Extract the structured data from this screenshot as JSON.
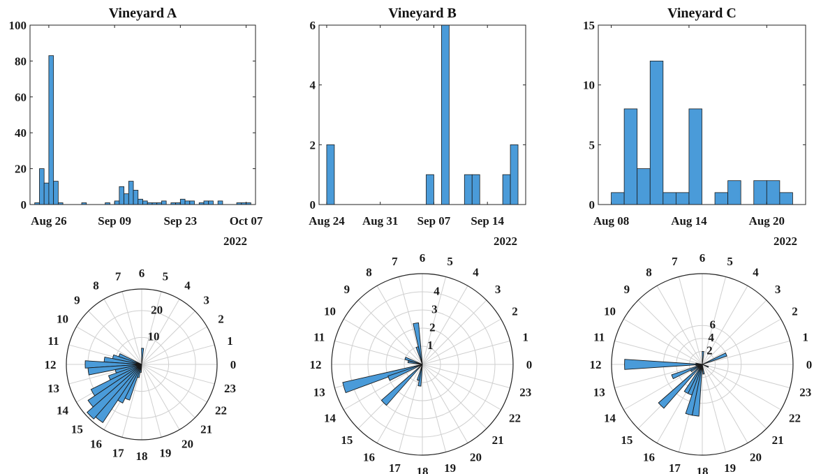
{
  "colors": {
    "bar_fill": "#4a9bd9",
    "bar_edge": "#1a1a1a",
    "axis": "#222222",
    "grid": "#cfcfcf"
  },
  "chart_data": [
    {
      "type": "bar",
      "title": "Vineyard A",
      "ylim": [
        0,
        100
      ],
      "yticks": [
        0,
        20,
        40,
        60,
        80,
        100
      ],
      "xrange": [
        "2022-08-22",
        "2022-10-09"
      ],
      "xticks": [
        {
          "date": "2022-08-26",
          "label": "Aug 26"
        },
        {
          "date": "2022-09-09",
          "label": "Sep 09"
        },
        {
          "date": "2022-09-23",
          "label": "Sep 23"
        },
        {
          "date": "2022-10-07",
          "label": "Oct 07"
        }
      ],
      "year_label": "2022",
      "bin_days": 1,
      "bins": [
        {
          "date": "2022-08-23",
          "value": 1
        },
        {
          "date": "2022-08-24",
          "value": 20
        },
        {
          "date": "2022-08-25",
          "value": 12
        },
        {
          "date": "2022-08-26",
          "value": 83
        },
        {
          "date": "2022-08-27",
          "value": 13
        },
        {
          "date": "2022-08-28",
          "value": 1
        },
        {
          "date": "2022-09-02",
          "value": 1
        },
        {
          "date": "2022-09-07",
          "value": 1
        },
        {
          "date": "2022-09-09",
          "value": 2
        },
        {
          "date": "2022-09-10",
          "value": 10
        },
        {
          "date": "2022-09-11",
          "value": 6
        },
        {
          "date": "2022-09-12",
          "value": 13
        },
        {
          "date": "2022-09-13",
          "value": 8
        },
        {
          "date": "2022-09-14",
          "value": 3
        },
        {
          "date": "2022-09-15",
          "value": 2
        },
        {
          "date": "2022-09-16",
          "value": 1
        },
        {
          "date": "2022-09-17",
          "value": 1
        },
        {
          "date": "2022-09-18",
          "value": 1
        },
        {
          "date": "2022-09-19",
          "value": 2
        },
        {
          "date": "2022-09-21",
          "value": 1
        },
        {
          "date": "2022-09-22",
          "value": 1
        },
        {
          "date": "2022-09-23",
          "value": 3
        },
        {
          "date": "2022-09-24",
          "value": 2
        },
        {
          "date": "2022-09-25",
          "value": 2
        },
        {
          "date": "2022-09-27",
          "value": 1
        },
        {
          "date": "2022-09-28",
          "value": 2
        },
        {
          "date": "2022-09-29",
          "value": 2
        },
        {
          "date": "2022-10-01",
          "value": 2
        },
        {
          "date": "2022-10-05",
          "value": 1
        },
        {
          "date": "2022-10-06",
          "value": 1
        },
        {
          "date": "2022-10-07",
          "value": 1
        }
      ]
    },
    {
      "type": "bar",
      "title": "Vineyard B",
      "ylim": [
        0,
        6
      ],
      "yticks": [
        0,
        2,
        4,
        6
      ],
      "xrange": [
        "2022-08-23",
        "2022-09-19"
      ],
      "xticks": [
        {
          "date": "2022-08-24",
          "label": "Aug 24"
        },
        {
          "date": "2022-08-31",
          "label": "Aug 31"
        },
        {
          "date": "2022-09-07",
          "label": "Sep 07"
        },
        {
          "date": "2022-09-14",
          "label": "Sep 14"
        }
      ],
      "year_label": "2022",
      "bin_days": 1,
      "bins": [
        {
          "date": "2022-08-24",
          "value": 2
        },
        {
          "date": "2022-09-06",
          "value": 1
        },
        {
          "date": "2022-09-08",
          "value": 6
        },
        {
          "date": "2022-09-11",
          "value": 1
        },
        {
          "date": "2022-09-12",
          "value": 1
        },
        {
          "date": "2022-09-16",
          "value": 1
        },
        {
          "date": "2022-09-17",
          "value": 2
        }
      ]
    },
    {
      "type": "bar",
      "title": "Vineyard C",
      "ylim": [
        0,
        15
      ],
      "yticks": [
        0,
        5,
        10,
        15
      ],
      "xrange": [
        "2022-08-07",
        "2022-08-23"
      ],
      "xticks": [
        {
          "date": "2022-08-08",
          "label": "Aug 08"
        },
        {
          "date": "2022-08-14",
          "label": "Aug 14"
        },
        {
          "date": "2022-08-20",
          "label": "Aug 20"
        }
      ],
      "year_label": "2022",
      "bin_days": 1,
      "bins": [
        {
          "date": "2022-08-08",
          "value": 1
        },
        {
          "date": "2022-08-09",
          "value": 8
        },
        {
          "date": "2022-08-10",
          "value": 3
        },
        {
          "date": "2022-08-11",
          "value": 12
        },
        {
          "date": "2022-08-12",
          "value": 1
        },
        {
          "date": "2022-08-13",
          "value": 1
        },
        {
          "date": "2022-08-14",
          "value": 8
        },
        {
          "date": "2022-08-16",
          "value": 1
        },
        {
          "date": "2022-08-17",
          "value": 2
        },
        {
          "date": "2022-08-19",
          "value": 2
        },
        {
          "date": "2022-08-20",
          "value": 2
        },
        {
          "date": "2022-08-21",
          "value": 1
        }
      ]
    },
    {
      "type": "polar_histogram",
      "theta_labels": [
        "0",
        "1",
        "2",
        "3",
        "4",
        "5",
        "6",
        "7",
        "8",
        "9",
        "10",
        "11",
        "12",
        "13",
        "14",
        "15",
        "16",
        "17",
        "18",
        "19",
        "20",
        "21",
        "22",
        "23"
      ],
      "rlim": [
        0,
        28
      ],
      "rticks": [
        10,
        20
      ],
      "bins": [
        {
          "hour": 5.8,
          "value": 6
        },
        {
          "hour": 10.5,
          "value": 9
        },
        {
          "hour": 11.0,
          "value": 11
        },
        {
          "hour": 11.5,
          "value": 14
        },
        {
          "hour": 12.0,
          "value": 21
        },
        {
          "hour": 12.5,
          "value": 20
        },
        {
          "hour": 13.0,
          "value": 10
        },
        {
          "hour": 13.5,
          "value": 13
        },
        {
          "hour": 14.0,
          "value": 21
        },
        {
          "hour": 14.5,
          "value": 24
        },
        {
          "hour": 15.0,
          "value": 27
        },
        {
          "hour": 15.5,
          "value": 26
        },
        {
          "hour": 16.0,
          "value": 16
        },
        {
          "hour": 16.5,
          "value": 14
        },
        {
          "hour": 17.0,
          "value": 5
        },
        {
          "hour": 17.5,
          "value": 3
        }
      ]
    },
    {
      "type": "polar_histogram",
      "theta_labels": [
        "0",
        "1",
        "2",
        "3",
        "4",
        "5",
        "6",
        "7",
        "8",
        "9",
        "10",
        "11",
        "12",
        "13",
        "14",
        "15",
        "16",
        "17",
        "18",
        "19",
        "20",
        "21",
        "22",
        "23"
      ],
      "rlim": [
        0,
        5
      ],
      "rticks": [
        1,
        2,
        3,
        4
      ],
      "bins": [
        {
          "hour": 6.6,
          "value": 2.3
        },
        {
          "hour": 7.1,
          "value": 1.0
        },
        {
          "hour": 10.7,
          "value": 1.0
        },
        {
          "hour": 11.3,
          "value": 0.8
        },
        {
          "hour": 13.1,
          "value": 4.5
        },
        {
          "hour": 13.5,
          "value": 2.0
        },
        {
          "hour": 15.0,
          "value": 3.0
        },
        {
          "hour": 17.0,
          "value": 0.9
        },
        {
          "hour": 17.5,
          "value": 1.2
        }
      ]
    },
    {
      "type": "polar_histogram",
      "theta_labels": [
        "0",
        "1",
        "2",
        "3",
        "4",
        "5",
        "6",
        "7",
        "8",
        "9",
        "10",
        "11",
        "12",
        "13",
        "14",
        "15",
        "16",
        "17",
        "18",
        "19",
        "20",
        "21",
        "22",
        "23"
      ],
      "rlim": [
        0,
        14
      ],
      "rticks": [
        2,
        4,
        6
      ],
      "bins": [
        {
          "hour": 1.5,
          "value": 4.0
        },
        {
          "hour": 5.8,
          "value": 2.0
        },
        {
          "hour": 11.5,
          "value": 1.0
        },
        {
          "hour": 12.0,
          "value": 12.0
        },
        {
          "hour": 12.5,
          "value": 1.0
        },
        {
          "hour": 13.5,
          "value": 5.0
        },
        {
          "hour": 14.0,
          "value": 2.0
        },
        {
          "hour": 15.0,
          "value": 9.0
        },
        {
          "hour": 16.0,
          "value": 5.0
        },
        {
          "hour": 16.5,
          "value": 5.0
        },
        {
          "hour": 17.0,
          "value": 8.0
        },
        {
          "hour": 17.5,
          "value": 8.0
        },
        {
          "hour": 18.5,
          "value": 1.5
        },
        {
          "hour": 22.5,
          "value": 1.0
        }
      ]
    }
  ]
}
